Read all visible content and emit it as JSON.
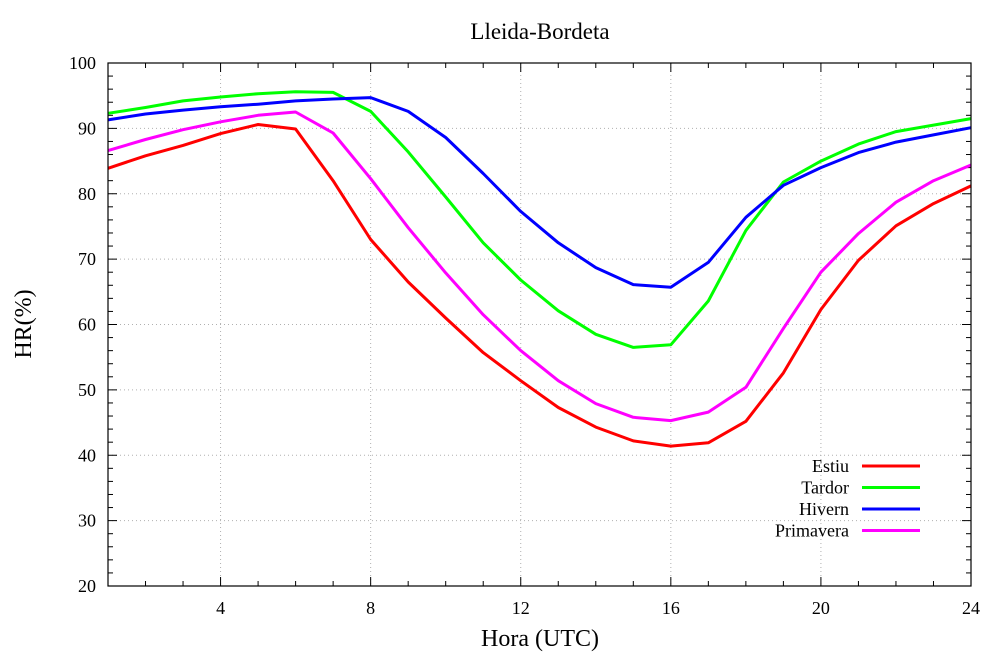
{
  "chart_data": {
    "type": "line",
    "title": "Lleida-Bordeta",
    "xlabel": "Hora (UTC)",
    "ylabel": "HR(%)",
    "xlim": [
      1,
      24
    ],
    "ylim": [
      20,
      100
    ],
    "xticks": [
      4,
      8,
      12,
      16,
      20,
      24
    ],
    "yticks": [
      20,
      30,
      40,
      50,
      60,
      70,
      80,
      90,
      100
    ],
    "grid": true,
    "legend_position": "bottom-right",
    "x": [
      1,
      2,
      3,
      4,
      5,
      6,
      7,
      8,
      9,
      10,
      11,
      12,
      13,
      14,
      15,
      16,
      17,
      18,
      19,
      20,
      21,
      22,
      23,
      24
    ],
    "series": [
      {
        "name": "Estiu",
        "color": "#ff0000",
        "values": [
          83.9,
          85.8,
          87.4,
          89.2,
          90.6,
          89.9,
          82.0,
          73.0,
          66.5,
          61.0,
          55.7,
          51.4,
          47.3,
          44.3,
          42.2,
          41.4,
          41.9,
          45.2,
          52.6,
          62.3,
          69.8,
          75.1,
          78.5,
          81.2
        ]
      },
      {
        "name": "Tardor",
        "color": "#00ff00",
        "values": [
          92.3,
          93.2,
          94.2,
          94.8,
          95.3,
          95.6,
          95.5,
          92.6,
          86.4,
          79.5,
          72.5,
          66.8,
          62.1,
          58.5,
          56.5,
          56.9,
          63.6,
          74.4,
          81.8,
          85.0,
          87.6,
          89.5,
          90.5,
          91.5
        ]
      },
      {
        "name": "Hivern",
        "color": "#0000ff",
        "values": [
          91.3,
          92.2,
          92.8,
          93.3,
          93.7,
          94.2,
          94.5,
          94.7,
          92.6,
          88.6,
          83.1,
          77.3,
          72.5,
          68.7,
          66.1,
          65.7,
          69.5,
          76.4,
          81.3,
          84.0,
          86.3,
          87.9,
          89.0,
          90.1
        ]
      },
      {
        "name": "Primavera",
        "color": "#ff00ff",
        "values": [
          86.6,
          88.3,
          89.8,
          91.0,
          92.0,
          92.5,
          89.3,
          82.3,
          74.8,
          67.9,
          61.5,
          56.0,
          51.4,
          47.9,
          45.8,
          45.3,
          46.6,
          50.4,
          59.4,
          68.0,
          73.9,
          78.7,
          82.0,
          84.4
        ]
      }
    ]
  }
}
